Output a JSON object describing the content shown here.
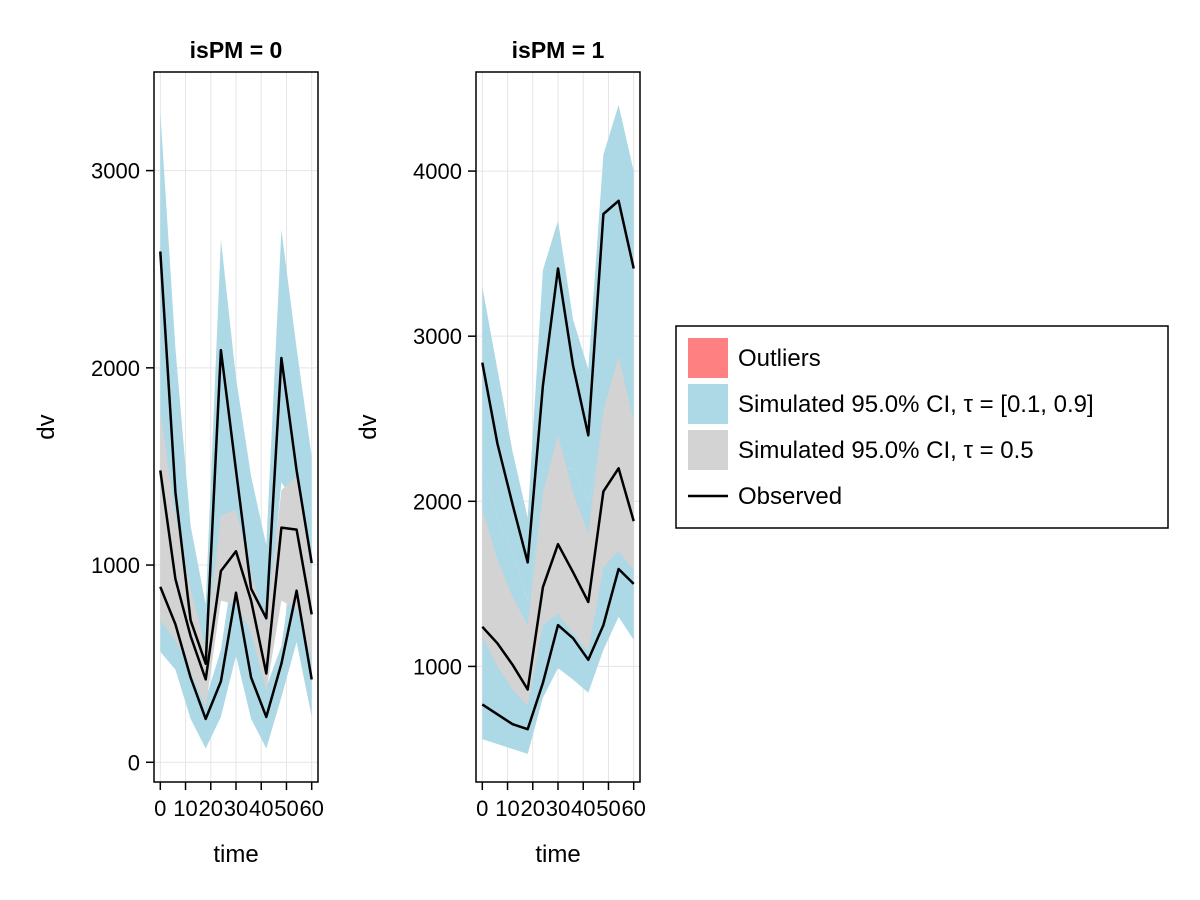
{
  "chart_data": [
    {
      "type": "line",
      "title": "isPM = 0",
      "xlabel": "time",
      "ylabel": "dv",
      "xlim": [
        -2.5,
        62.5
      ],
      "ylim": [
        -100,
        3500
      ],
      "xticks": [
        0,
        10,
        20,
        30,
        40,
        50,
        60
      ],
      "xtick_labels": [
        "0",
        "10",
        "20",
        "30",
        "40",
        "50",
        "60"
      ],
      "yticks": [
        0,
        1000,
        2000,
        3000
      ],
      "ytick_labels": [
        "0",
        "1000",
        "2000",
        "3000"
      ],
      "x": [
        0,
        6,
        12,
        18,
        24,
        30,
        36,
        42,
        48,
        54,
        60
      ],
      "bands": [
        {
          "name": "Simulated 95.0% CI, τ = 0.9",
          "color": "#add8e6",
          "lower": [
            1250,
            1000,
            720,
            420,
            1250,
            1200,
            860,
            620,
            1420,
            1300,
            820
          ],
          "upper": [
            3300,
            2100,
            1200,
            800,
            2650,
            1950,
            1450,
            1100,
            2700,
            2100,
            1550
          ]
        },
        {
          "name": "Simulated 95.0% CI, τ = 0.1",
          "color": "#add8e6",
          "lower": [
            560,
            470,
            220,
            70,
            230,
            540,
            220,
            70,
            330,
            610,
            230
          ],
          "upper": [
            1020,
            880,
            620,
            320,
            570,
            1080,
            660,
            380,
            590,
            1130,
            630
          ]
        },
        {
          "name": "Simulated 95.0% CI, τ = 0.5",
          "color": "#d3d3d3",
          "lower": [
            720,
            620,
            460,
            280,
            820,
            800,
            660,
            360,
            820,
            780,
            520
          ],
          "upper": [
            1780,
            1250,
            880,
            580,
            1250,
            1280,
            960,
            700,
            1380,
            1450,
            960
          ]
        }
      ],
      "series": [
        {
          "name": "Observed τ = 0.9",
          "values": [
            2590,
            1370,
            720,
            500,
            2090,
            1480,
            880,
            730,
            2050,
            1480,
            1010
          ]
        },
        {
          "name": "Observed τ = 0.5",
          "values": [
            1480,
            930,
            640,
            420,
            970,
            1070,
            820,
            450,
            1190,
            1180,
            750
          ]
        },
        {
          "name": "Observed τ = 0.1",
          "values": [
            890,
            700,
            430,
            220,
            410,
            860,
            430,
            230,
            500,
            870,
            420
          ]
        }
      ]
    },
    {
      "type": "line",
      "title": "isPM = 1",
      "xlabel": "time",
      "ylabel": "dv",
      "xlim": [
        -2.5,
        62.5
      ],
      "ylim": [
        300,
        4600
      ],
      "xticks": [
        0,
        10,
        20,
        30,
        40,
        50,
        60
      ],
      "xtick_labels": [
        "0",
        "10",
        "20",
        "30",
        "40",
        "50",
        "60"
      ],
      "yticks": [
        1000,
        2000,
        3000,
        4000
      ],
      "ytick_labels": [
        "1000",
        "2000",
        "3000",
        "4000"
      ],
      "x": [
        0,
        6,
        12,
        18,
        24,
        30,
        36,
        42,
        48,
        54,
        60
      ],
      "bands": [
        {
          "name": "Simulated 95.0% CI, τ = 0.9",
          "color": "#add8e6",
          "lower": [
            2200,
            1900,
            1700,
            1400,
            2000,
            2200,
            2200,
            2000,
            2400,
            2600,
            2500
          ],
          "upper": [
            3300,
            2800,
            2300,
            1900,
            3400,
            3700,
            3100,
            2800,
            4100,
            4400,
            4000
          ]
        },
        {
          "name": "Simulated 95.0% CI, τ = 0.1",
          "color": "#add8e6",
          "lower": [
            560,
            530,
            500,
            470,
            810,
            990,
            920,
            840,
            1100,
            1300,
            1160
          ]
        },
        {
          "name": "Simulated 95.0% CI, τ = 0.5",
          "color": "#d3d3d3",
          "lower": [
            1180,
            1000,
            860,
            760,
            1250,
            1320,
            1200,
            1090,
            1600,
            1700,
            1580
          ],
          "upper": [
            1950,
            1650,
            1420,
            1250,
            2050,
            2400,
            2050,
            1800,
            2550,
            2880,
            2480
          ]
        }
      ],
      "series": [
        {
          "name": "Observed τ = 0.9",
          "values": [
            2840,
            2350,
            1980,
            1630,
            2700,
            3410,
            2820,
            2400,
            3740,
            3820,
            3410
          ]
        },
        {
          "name": "Observed τ = 0.5",
          "values": [
            1240,
            1140,
            1010,
            860,
            1480,
            1740,
            1570,
            1390,
            2060,
            2200,
            1880
          ]
        },
        {
          "name": "Observed τ = 0.1",
          "values": [
            770,
            710,
            650,
            620,
            900,
            1250,
            1170,
            1040,
            1250,
            1590,
            1500
          ]
        }
      ]
    }
  ],
  "legend": {
    "placement": "right",
    "items": [
      {
        "label": "Outliers",
        "kind": "patch",
        "color": "#ff8080"
      },
      {
        "label": "Simulated 95.0% CI, τ = [0.1, 0.9]",
        "kind": "patch",
        "color": "#add8e6"
      },
      {
        "label": "Simulated 95.0% CI, τ = 0.5",
        "kind": "patch",
        "color": "#d3d3d3"
      },
      {
        "label": "Observed",
        "kind": "line",
        "color": "#000000"
      }
    ]
  }
}
